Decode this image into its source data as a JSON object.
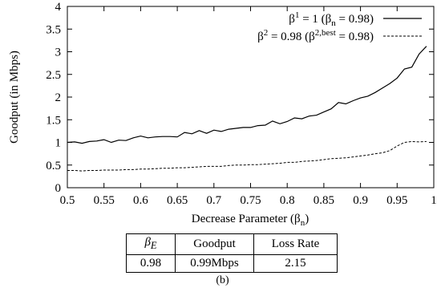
{
  "chart_data": {
    "type": "line",
    "xlabel_parts": {
      "main": "Decrease Parameter (β",
      "sub": "n",
      "end": ")"
    },
    "ylabel": "Goodput (in Mbps)",
    "xlim": [
      0.5,
      1.0
    ],
    "ylim": [
      0,
      4
    ],
    "xticks": [
      "0.5",
      "0.55",
      "0.6",
      "0.65",
      "0.7",
      "0.75",
      "0.8",
      "0.85",
      "0.9",
      "0.95",
      "1"
    ],
    "yticks": [
      "0",
      "0.5",
      "1",
      "1.5",
      "2",
      "2.5",
      "3",
      "3.5",
      "4"
    ],
    "grid": false,
    "legend_position": "top-right",
    "series": [
      {
        "name": "β1 = 1 (βn = 0.98)",
        "legend_parts": {
          "a": "β",
          "a_sup": "1",
          "b": " = 1 (β",
          "b_sub": "n",
          "c": " = 0.98)"
        },
        "style": "solid",
        "x": [
          0.5,
          0.51,
          0.52,
          0.53,
          0.54,
          0.55,
          0.56,
          0.57,
          0.58,
          0.59,
          0.6,
          0.61,
          0.62,
          0.63,
          0.64,
          0.65,
          0.66,
          0.67,
          0.68,
          0.69,
          0.7,
          0.71,
          0.72,
          0.73,
          0.74,
          0.75,
          0.76,
          0.77,
          0.78,
          0.79,
          0.8,
          0.81,
          0.82,
          0.83,
          0.84,
          0.85,
          0.86,
          0.87,
          0.88,
          0.89,
          0.9,
          0.91,
          0.92,
          0.93,
          0.94,
          0.95,
          0.96,
          0.97,
          0.98,
          0.99
        ],
        "y": [
          1.0,
          1.01,
          0.98,
          1.02,
          1.03,
          1.06,
          1.0,
          1.05,
          1.04,
          1.1,
          1.14,
          1.1,
          1.12,
          1.13,
          1.13,
          1.12,
          1.22,
          1.19,
          1.26,
          1.2,
          1.27,
          1.24,
          1.29,
          1.31,
          1.33,
          1.33,
          1.37,
          1.38,
          1.47,
          1.41,
          1.46,
          1.54,
          1.52,
          1.58,
          1.6,
          1.67,
          1.74,
          1.88,
          1.85,
          1.92,
          1.98,
          2.02,
          2.1,
          2.2,
          2.3,
          2.42,
          2.62,
          2.66,
          2.95,
          3.12
        ]
      },
      {
        "name": "β2 = 0.98 (β2,best = 0.98)",
        "legend_parts": {
          "a": "β",
          "a_sup": "2",
          "b": " = 0.98 (β",
          "b_sup": "2,best",
          "c": " = 0.98)"
        },
        "style": "dashed",
        "x": [
          0.5,
          0.51,
          0.52,
          0.53,
          0.54,
          0.55,
          0.56,
          0.57,
          0.58,
          0.59,
          0.6,
          0.61,
          0.62,
          0.63,
          0.64,
          0.65,
          0.66,
          0.67,
          0.68,
          0.69,
          0.7,
          0.71,
          0.72,
          0.73,
          0.74,
          0.75,
          0.76,
          0.77,
          0.78,
          0.79,
          0.8,
          0.81,
          0.82,
          0.83,
          0.84,
          0.85,
          0.86,
          0.87,
          0.88,
          0.89,
          0.9,
          0.91,
          0.92,
          0.93,
          0.94,
          0.95,
          0.96,
          0.97,
          0.98,
          0.99
        ],
        "y": [
          0.38,
          0.38,
          0.37,
          0.38,
          0.38,
          0.39,
          0.39,
          0.39,
          0.4,
          0.4,
          0.41,
          0.41,
          0.42,
          0.43,
          0.43,
          0.44,
          0.44,
          0.45,
          0.46,
          0.47,
          0.47,
          0.47,
          0.49,
          0.5,
          0.5,
          0.51,
          0.51,
          0.52,
          0.53,
          0.54,
          0.56,
          0.56,
          0.58,
          0.59,
          0.6,
          0.62,
          0.64,
          0.65,
          0.66,
          0.68,
          0.7,
          0.72,
          0.75,
          0.77,
          0.82,
          0.92,
          1.0,
          1.02,
          1.01,
          1.02
        ]
      }
    ]
  },
  "table": {
    "headers": {
      "beta_main": "β",
      "beta_sub": "E",
      "goodput": "Goodput",
      "loss": "Loss Rate"
    },
    "row": {
      "beta": "0.98",
      "goodput": "0.99Mbps",
      "loss": "2.15"
    }
  },
  "caption": "(b)"
}
